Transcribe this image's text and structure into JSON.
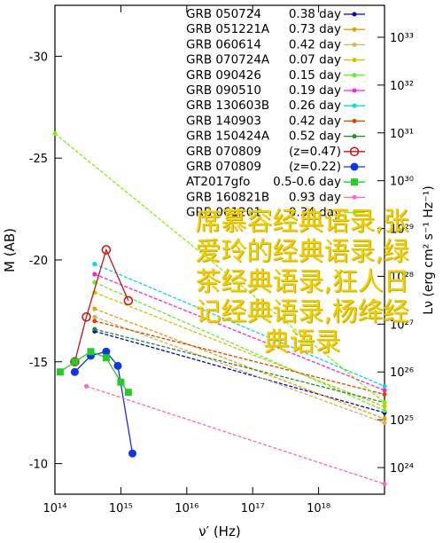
{
  "chart_data": {
    "type": "line",
    "xlabel": "ν′ (Hz)",
    "ylabel": "M (AB)",
    "y2label": "Lν (erg cm² s⁻¹ Hz⁻¹)",
    "x_scale": "log",
    "xlim": [
      100000000000000.0,
      1e+19
    ],
    "ylim": [
      -8.5,
      -32.5
    ],
    "x_ticks": [
      "10¹⁴",
      "10¹⁵",
      "10¹⁶",
      "10¹⁷",
      "10¹⁸"
    ],
    "y_ticks": [
      "-30",
      "-25",
      "-20",
      "-15",
      "-10"
    ],
    "y2_ticks": [
      "10³³",
      "10³²",
      "10³¹",
      "10³⁰",
      "10²⁹",
      "10²⁸",
      "10²⁷",
      "10²⁶",
      "10²⁵",
      "10²⁴"
    ],
    "legend_position": "top-right",
    "series": [
      {
        "name": "GRB 050724",
        "z_label": "0.38 day",
        "color": "#0000cc",
        "marker": "dot",
        "x": [
          400000000000000.0,
          1e+19
        ],
        "y": [
          -16.5,
          -12.5
        ]
      },
      {
        "name": "GRB 051221A",
        "z_label": "0.73 day",
        "color": "#e8a000",
        "marker": "dot",
        "x": [
          400000000000000.0,
          1e+19
        ],
        "y": [
          -17.6,
          -12.2
        ]
      },
      {
        "name": "GRB 060614",
        "z_label": "0.42 day",
        "color": "#d4b060",
        "marker": "dot",
        "x": [
          400000000000000.0,
          1e+19
        ],
        "y": [
          -17.2,
          -12.0
        ]
      },
      {
        "name": "GRB 070724A",
        "z_label": "0.07 day",
        "color": "#c8c800",
        "marker": "dot",
        "x": [
          400000000000000.0,
          1e+19
        ],
        "y": [
          -18.4,
          -12.8
        ]
      },
      {
        "name": "GRB 090426",
        "z_label": "0.15 day",
        "color": "#66ee33",
        "marker": "dot",
        "x": [
          400000000000000.0,
          1e+19
        ],
        "y": [
          -18.9,
          -12.6
        ]
      },
      {
        "name": "GRB 090510",
        "z_label": "0.19 day",
        "color": "#ff22cc",
        "marker": "dot",
        "x": [
          400000000000000.0,
          1e+19
        ],
        "y": [
          -19.3,
          -13.6
        ]
      },
      {
        "name": "GRB 130603B",
        "z_label": "0.26 day",
        "color": "#00dddd",
        "marker": "dot",
        "x": [
          400000000000000.0,
          1e+19
        ],
        "y": [
          -19.8,
          -13.8
        ]
      },
      {
        "name": "GRB 140903",
        "z_label": "0.42 day",
        "color": "#dd4400",
        "marker": "dot",
        "x": [
          400000000000000.0,
          1e+19
        ],
        "y": [
          -17.0,
          -13.4
        ]
      },
      {
        "name": "GRB 150424A",
        "z_label": "0.52 day",
        "color": "#228833",
        "marker": "dot",
        "x": [
          400000000000000.0,
          1e+19
        ],
        "y": [
          -16.6,
          -13.0
        ]
      },
      {
        "name": "GRB 070809",
        "z_label": "(z=0.47)",
        "color": "#cc1111",
        "marker": "open-circle",
        "x": [
          200000000000000.0,
          300000000000000.0,
          600000000000000.0,
          1300000000000000.0
        ],
        "y": [
          -15.0,
          -17.2,
          -20.5,
          -18.0
        ]
      },
      {
        "name": "GRB 070809",
        "z_label": "(z=0.22)",
        "color": "#1133ee",
        "marker": "filled-circle",
        "x": [
          200000000000000.0,
          350000000000000.0,
          600000000000000.0,
          900000000000000.0,
          1500000000000000.0
        ],
        "y": [
          -14.5,
          -15.3,
          -15.5,
          -14.8,
          -10.5
        ]
      },
      {
        "name": "AT2017gfo",
        "z_label": "0.5-0.6 day",
        "color": "#22cc22",
        "marker": "square",
        "x": [
          120000000000000.0,
          200000000000000.0,
          350000000000000.0,
          600000000000000.0,
          1000000000000000.0,
          1300000000000000.0
        ],
        "y": [
          -14.5,
          -15.0,
          -15.5,
          -15.2,
          -14.0,
          -13.5
        ]
      },
      {
        "name": "GRB 160821B",
        "z_label": "0.93 day",
        "color": "#ff66bb",
        "marker": "dot",
        "x": [
          300000000000000.0,
          1e+19
        ],
        "y": [
          -13.8,
          -9.0
        ]
      },
      {
        "name": "GRB 061201",
        "z_label": "0.34 day",
        "color": "#88ee00",
        "marker": "dot",
        "x": [
          100000000000000.0,
          1e+19
        ],
        "y": [
          -26.2,
          -13.0
        ]
      }
    ]
  },
  "overlay": {
    "line1": "席慕容经典语录,张爱玲的经典语录,绿茶经典语录,狂人日记经典语录,杨绛经典语录"
  }
}
